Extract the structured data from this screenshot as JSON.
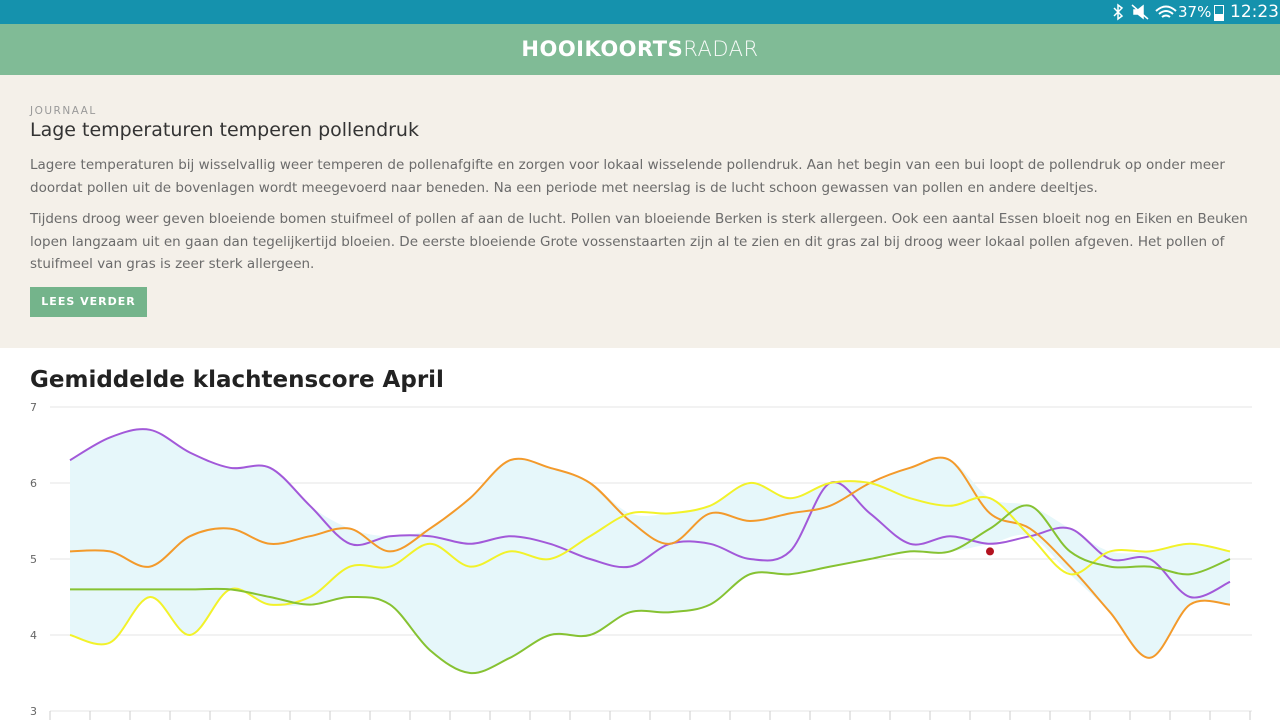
{
  "status_bar": {
    "battery": "37%",
    "time": "12:23"
  },
  "header": {
    "brand_bold": "HOOIKOORTS",
    "brand_light": "RADAR"
  },
  "article": {
    "label": "JOURNAAL",
    "title": "Lage temperaturen temperen pollendruk",
    "paragraphs": [
      "Lagere temperaturen bij wisselvallig weer temperen de pollenafgifte en zorgen voor lokaal wisselende pollendruk. Aan het begin van een bui loopt de pollendruk op onder meer doordat pollen uit de bovenlagen wordt meegevoerd naar beneden. Na een periode met neerslag is de lucht schoon gewassen van pollen en andere deeltjes.",
      "Tijdens droog weer geven bloeiende bomen stuifmeel of pollen af aan de lucht. Pollen van bloeiende Berken is sterk allergeen. Ook een aantal Essen bloeit nog en Eiken en Beuken lopen langzaam uit en gaan dan tegelijkertijd bloeien. De eerste bloeiende Grote vossenstaarten zijn al te zien en dit gras zal bij droog weer lokaal pollen afgeven. Het pollen of stuifmeel van gras is zeer sterk allergeen."
    ],
    "button": "LEES VERDER"
  },
  "chart_data": {
    "type": "line",
    "title": "Gemiddelde klachtenscore April",
    "categories": [
      null,
      null,
      null,
      null,
      null,
      null,
      null,
      null,
      null,
      null,
      null,
      null,
      null,
      null,
      null,
      null,
      null,
      null,
      null,
      null,
      null,
      null,
      null,
      null,
      null,
      null,
      null,
      null,
      null,
      null
    ],
    "ylim": [
      3,
      7
    ],
    "yticks": [
      3,
      4,
      5,
      6,
      7
    ],
    "grid": true,
    "range_fill": "#e6f7fa",
    "series": [
      {
        "color": "#a259d9",
        "values": [
          6.3,
          6.6,
          6.7,
          6.4,
          6.2,
          6.2,
          5.7,
          5.2,
          5.3,
          5.3,
          5.2,
          5.3,
          5.2,
          5.0,
          4.9,
          5.2,
          5.2,
          5.0,
          5.1,
          6.0,
          5.6,
          5.2,
          5.3,
          5.2,
          5.3,
          5.4,
          5.0,
          5.0,
          4.5,
          4.7
        ]
      },
      {
        "color": "#f39a2b",
        "values": [
          5.1,
          5.1,
          4.9,
          5.3,
          5.4,
          5.2,
          5.3,
          5.4,
          5.1,
          5.4,
          5.8,
          6.3,
          6.2,
          6.0,
          5.5,
          5.2,
          5.6,
          5.5,
          5.6,
          5.7,
          6.0,
          6.2,
          6.3,
          5.6,
          5.4,
          4.9,
          4.3,
          3.7,
          4.4,
          4.4
        ]
      },
      {
        "color": "#f2f22a",
        "values": [
          4.0,
          3.9,
          4.5,
          4.0,
          4.6,
          4.4,
          4.5,
          4.9,
          4.9,
          5.2,
          4.9,
          5.1,
          5.0,
          5.3,
          5.6,
          5.6,
          5.7,
          6.0,
          5.8,
          6.0,
          6.0,
          5.8,
          5.7,
          5.8,
          5.3,
          4.8,
          5.1,
          5.1,
          5.2,
          5.1
        ]
      },
      {
        "color": "#86c232",
        "values": [
          4.6,
          4.6,
          4.6,
          4.6,
          4.6,
          4.5,
          4.4,
          4.5,
          4.4,
          3.8,
          3.5,
          3.7,
          4.0,
          4.0,
          4.3,
          4.3,
          4.4,
          4.8,
          4.8,
          4.9,
          5.0,
          5.1,
          5.1,
          5.4,
          5.7,
          5.1,
          4.9,
          4.9,
          4.8,
          5.0
        ]
      }
    ],
    "highlight": {
      "index": 23,
      "value": 5.1,
      "color": "#b3121f"
    }
  }
}
